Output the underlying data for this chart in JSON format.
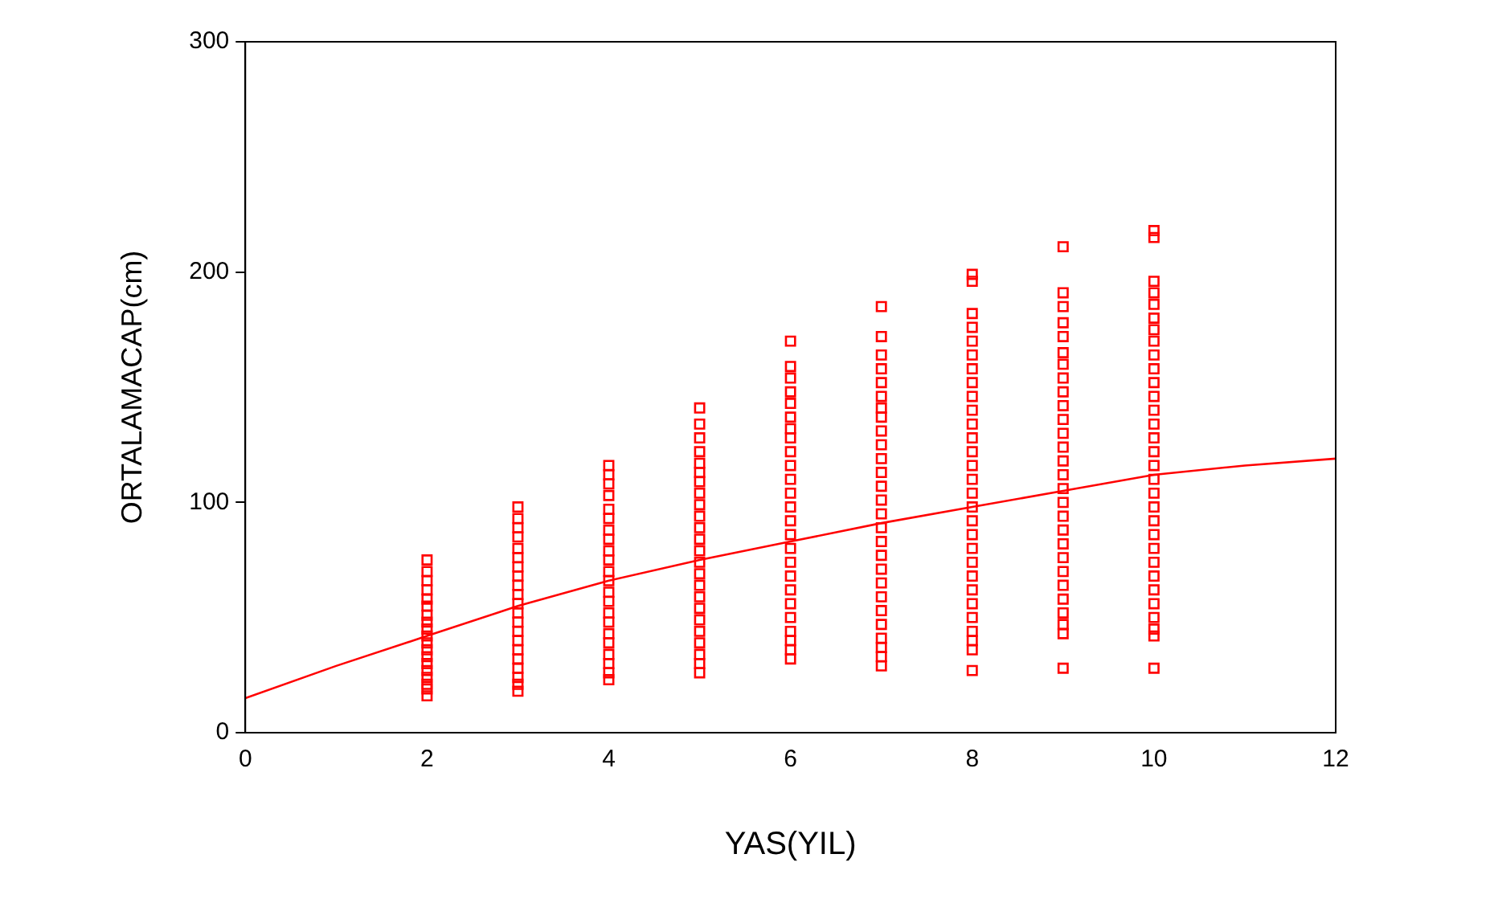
{
  "chart_data": {
    "type": "scatter",
    "xlabel": "YAS(YIL)",
    "ylabel": "ORTALAMACAP(cm)",
    "xlim": [
      0,
      12
    ],
    "xticks": [
      0,
      2,
      4,
      6,
      8,
      10,
      12
    ],
    "ylim": [
      0,
      300
    ],
    "yticks": [
      0,
      100,
      200,
      300
    ],
    "grid": false,
    "legend": false,
    "marker": "square",
    "series": [
      {
        "type": "scatter",
        "color": "#ff0000",
        "x": [
          2,
          2,
          2,
          2,
          2,
          2,
          2,
          2,
          2,
          2,
          2,
          2,
          2,
          2,
          2,
          2,
          2,
          2,
          2
        ],
        "values": [
          75,
          70,
          66,
          62,
          58,
          55,
          51,
          48,
          45,
          42,
          39,
          36,
          33,
          30,
          27,
          24,
          21,
          19,
          16
        ]
      },
      {
        "type": "scatter",
        "color": "#ff0000",
        "x": [
          3,
          3,
          3,
          3,
          3,
          3,
          3,
          3,
          3,
          3,
          3,
          3,
          3,
          3,
          3,
          3,
          3,
          3,
          3,
          3,
          3
        ],
        "values": [
          98,
          93,
          89,
          85,
          80,
          76,
          72,
          68,
          64,
          60,
          56,
          52,
          48,
          44,
          40,
          36,
          32,
          28,
          24,
          21,
          18
        ]
      },
      {
        "type": "scatter",
        "color": "#ff0000",
        "x": [
          4,
          4,
          4,
          4,
          4,
          4,
          4,
          4,
          4,
          4,
          4,
          4,
          4,
          4,
          4,
          4,
          4,
          4,
          4,
          4,
          4,
          4
        ],
        "values": [
          116,
          112,
          108,
          103,
          97,
          93,
          88,
          84,
          79,
          75,
          70,
          66,
          61,
          57,
          52,
          48,
          43,
          39,
          34,
          30,
          26,
          23
        ]
      },
      {
        "type": "scatter",
        "color": "#ff0000",
        "x": [
          5,
          5,
          5,
          5,
          5,
          5,
          5,
          5,
          5,
          5,
          5,
          5,
          5,
          5,
          5,
          5,
          5,
          5,
          5,
          5,
          5,
          5,
          5,
          5
        ],
        "values": [
          141,
          134,
          128,
          122,
          117,
          113,
          109,
          104,
          99,
          94,
          89,
          84,
          79,
          74,
          69,
          64,
          59,
          54,
          49,
          44,
          39,
          34,
          30,
          26
        ]
      },
      {
        "type": "scatter",
        "color": "#ff0000",
        "x": [
          6,
          6,
          6,
          6,
          6,
          6,
          6,
          6,
          6,
          6,
          6,
          6,
          6,
          6,
          6,
          6,
          6,
          6,
          6,
          6,
          6,
          6,
          6,
          6,
          6
        ],
        "values": [
          170,
          159,
          154,
          148,
          143,
          137,
          132,
          128,
          122,
          116,
          110,
          104,
          98,
          92,
          86,
          80,
          74,
          68,
          62,
          56,
          50,
          44,
          40,
          36,
          32
        ]
      },
      {
        "type": "scatter",
        "color": "#ff0000",
        "x": [
          7,
          7,
          7,
          7,
          7,
          7,
          7,
          7,
          7,
          7,
          7,
          7,
          7,
          7,
          7,
          7,
          7,
          7,
          7,
          7,
          7,
          7,
          7,
          7,
          7,
          7,
          7
        ],
        "values": [
          185,
          172,
          164,
          158,
          152,
          146,
          141,
          137,
          131,
          125,
          119,
          113,
          107,
          101,
          95,
          89,
          83,
          77,
          71,
          65,
          59,
          53,
          47,
          41,
          37,
          33,
          29
        ]
      },
      {
        "type": "scatter",
        "color": "#ff0000",
        "x": [
          8,
          8,
          8,
          8,
          8,
          8,
          8,
          8,
          8,
          8,
          8,
          8,
          8,
          8,
          8,
          8,
          8,
          8,
          8,
          8,
          8,
          8,
          8,
          8,
          8,
          8,
          8,
          8,
          8
        ],
        "values": [
          199,
          196,
          182,
          176,
          170,
          164,
          158,
          152,
          146,
          140,
          134,
          128,
          122,
          116,
          110,
          104,
          98,
          92,
          86,
          80,
          74,
          68,
          62,
          56,
          50,
          44,
          40,
          36,
          27
        ]
      },
      {
        "type": "scatter",
        "color": "#ff0000",
        "x": [
          9,
          9,
          9,
          9,
          9,
          9,
          9,
          9,
          9,
          9,
          9,
          9,
          9,
          9,
          9,
          9,
          9,
          9,
          9,
          9,
          9,
          9,
          9,
          9,
          9,
          9,
          9,
          9
        ],
        "values": [
          211,
          191,
          185,
          178,
          172,
          165,
          160,
          154,
          148,
          142,
          136,
          130,
          124,
          118,
          112,
          106,
          100,
          94,
          88,
          82,
          76,
          70,
          64,
          58,
          52,
          47,
          43,
          28
        ]
      },
      {
        "type": "scatter",
        "color": "#ff0000",
        "x": [
          10,
          10,
          10,
          10,
          10,
          10,
          10,
          10,
          10,
          10,
          10,
          10,
          10,
          10,
          10,
          10,
          10,
          10,
          10,
          10,
          10,
          10,
          10,
          10,
          10,
          10,
          10,
          10,
          10,
          10,
          10
        ],
        "values": [
          218,
          215,
          196,
          191,
          186,
          180,
          175,
          170,
          164,
          158,
          152,
          146,
          140,
          134,
          128,
          122,
          116,
          110,
          104,
          98,
          92,
          86,
          80,
          74,
          68,
          62,
          56,
          50,
          45,
          42,
          28
        ]
      },
      {
        "type": "line",
        "color": "#ff0000",
        "marker": "none",
        "line_style": "solid",
        "x": [
          0,
          1,
          2,
          3,
          4,
          5,
          6,
          7,
          8,
          9,
          10,
          11,
          12
        ],
        "values": [
          15,
          29,
          42,
          55,
          66,
          75,
          83,
          91,
          98,
          105,
          112,
          116,
          119
        ]
      }
    ]
  }
}
